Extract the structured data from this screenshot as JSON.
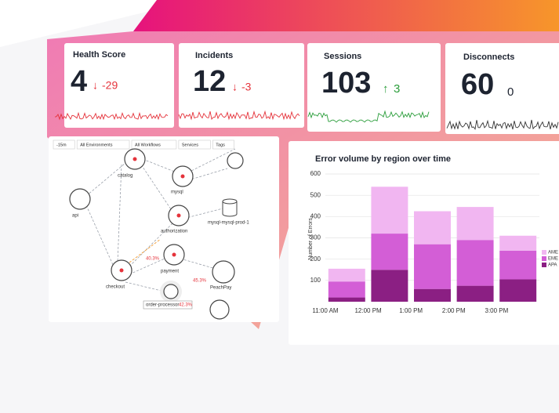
{
  "cards": [
    {
      "title": "Health Score",
      "value": 4,
      "delta": -29
    },
    {
      "title": "Incidents",
      "value": 12,
      "delta": -3
    },
    {
      "title": "Sessions",
      "value": 103,
      "delta": 3
    },
    {
      "title": "Disconnects",
      "value": 60,
      "delta": 0
    }
  ],
  "service_map": {
    "filters": [
      "-15m",
      "All Environments",
      "All Workflows",
      "Services",
      "Tags"
    ],
    "nodes": [
      "catalog",
      "api",
      "mysql",
      "authorization",
      "mysql-mysql-prod-1",
      "checkout",
      "payment",
      "PeachPay",
      "order-processor"
    ],
    "edge_labels": [
      "40.3%",
      "45.3%",
      "42.3%"
    ]
  },
  "chart_data": {
    "type": "stacked_bar",
    "title": "Error volume by region over time",
    "y_label": "Number of Errors",
    "categories": [
      "11:00 AM",
      "12:00 PM",
      "1:00 PM",
      "2:00 PM",
      "3:00 PM"
    ],
    "series": [
      {
        "name": "APA",
        "color": "#8b1f83",
        "values": [
          20,
          150,
          60,
          75,
          105
        ]
      },
      {
        "name": "EME",
        "color": "#d35ed6",
        "values": [
          75,
          170,
          210,
          215,
          135
        ]
      },
      {
        "name": "AME",
        "color": "#f1b6f1",
        "values": [
          60,
          220,
          155,
          155,
          70
        ]
      }
    ],
    "ylim": [
      0,
      600
    ],
    "yticks": [
      100,
      200,
      300,
      400,
      500,
      600
    ],
    "grid": true
  }
}
